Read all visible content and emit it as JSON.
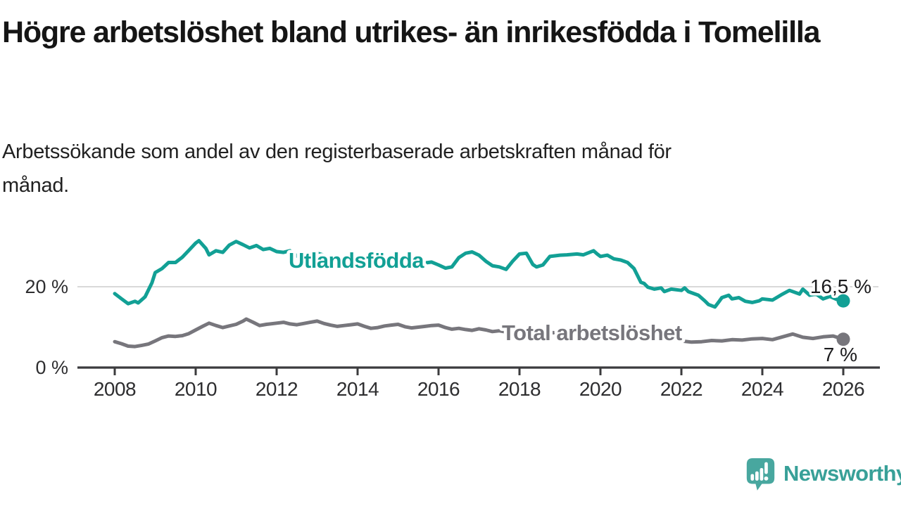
{
  "title": "Högre arbetslöshet bland utrikes- än inrikesfödda i Tomelilla",
  "subtitle": "Arbetssökande som andel av den registerbaserade arbetskraften månad för månad.",
  "branding": {
    "logo_text": "Newsworthy",
    "logo_icon": "newsworthy-speech-bubble-bar-chart-icon",
    "logo_color": "#48a79f",
    "logo_text_color": "#38a098"
  },
  "chart_data": {
    "type": "line",
    "title": "Högre arbetslöshet bland utrikes- än inrikesfödda i Tomelilla",
    "subtitle": "Arbetssökande som andel av den registerbaserade arbetskraften månad för månad.",
    "grid": "horizontal-at-20-only",
    "legend_position": "inline-labels-on-lines",
    "x_axis": {
      "range": [
        2007.1,
        2027.0
      ],
      "ticks": [
        2008,
        2010,
        2012,
        2014,
        2016,
        2018,
        2020,
        2022,
        2024,
        2026
      ]
    },
    "y_axis": {
      "unit": "%",
      "range": [
        0,
        33.5
      ],
      "ticks": [
        {
          "value": 20,
          "label": "20 %",
          "gridline": true
        },
        {
          "value": 0,
          "label": "0 %",
          "gridline": false
        }
      ]
    },
    "series": [
      {
        "name": "Utlandsfödda",
        "color": "#12a095",
        "end_label": "16,5 %",
        "end_value": 16.5,
        "points": [
          [
            2008.0,
            18.3
          ],
          [
            2008.17,
            17.0
          ],
          [
            2008.33,
            15.8
          ],
          [
            2008.5,
            16.4
          ],
          [
            2008.58,
            16.0
          ],
          [
            2008.75,
            17.5
          ],
          [
            2008.92,
            21.0
          ],
          [
            2009.0,
            23.5
          ],
          [
            2009.17,
            24.5
          ],
          [
            2009.33,
            26.0
          ],
          [
            2009.5,
            26.0
          ],
          [
            2009.67,
            27.3
          ],
          [
            2009.83,
            29.0
          ],
          [
            2010.0,
            30.8
          ],
          [
            2010.08,
            31.4
          ],
          [
            2010.25,
            29.5
          ],
          [
            2010.33,
            27.9
          ],
          [
            2010.5,
            28.9
          ],
          [
            2010.67,
            28.5
          ],
          [
            2010.83,
            30.3
          ],
          [
            2011.0,
            31.2
          ],
          [
            2011.17,
            30.4
          ],
          [
            2011.33,
            29.6
          ],
          [
            2011.5,
            30.2
          ],
          [
            2011.67,
            29.2
          ],
          [
            2011.83,
            29.5
          ],
          [
            2012.0,
            28.7
          ],
          [
            2012.17,
            28.5
          ],
          [
            2012.33,
            28.9
          ],
          [
            2012.5,
            27.6
          ],
          [
            2012.67,
            28.2
          ],
          [
            2012.83,
            27.5
          ],
          [
            2013.0,
            28.3
          ],
          [
            2013.17,
            27.8
          ],
          [
            2013.33,
            27.2
          ],
          [
            2013.5,
            26.8
          ],
          [
            2013.67,
            27.3
          ],
          [
            2013.83,
            26.6
          ],
          [
            2014.0,
            27.0
          ],
          [
            2014.17,
            26.4
          ],
          [
            2014.33,
            26.7
          ],
          [
            2014.5,
            26.1
          ],
          [
            2014.67,
            26.5
          ],
          [
            2014.83,
            25.9
          ],
          [
            2015.0,
            26.2
          ],
          [
            2015.17,
            25.7
          ],
          [
            2015.33,
            26.0
          ],
          [
            2015.5,
            25.5
          ],
          [
            2015.67,
            25.9
          ],
          [
            2015.83,
            26.1
          ],
          [
            2016.0,
            25.4
          ],
          [
            2016.17,
            24.6
          ],
          [
            2016.33,
            24.9
          ],
          [
            2016.5,
            27.2
          ],
          [
            2016.67,
            28.3
          ],
          [
            2016.83,
            28.6
          ],
          [
            2017.0,
            27.8
          ],
          [
            2017.17,
            26.3
          ],
          [
            2017.33,
            25.2
          ],
          [
            2017.5,
            24.9
          ],
          [
            2017.67,
            24.3
          ],
          [
            2017.83,
            26.3
          ],
          [
            2018.0,
            28.1
          ],
          [
            2018.17,
            28.3
          ],
          [
            2018.33,
            25.5
          ],
          [
            2018.42,
            24.9
          ],
          [
            2018.58,
            25.4
          ],
          [
            2018.75,
            27.5
          ],
          [
            2019.0,
            27.8
          ],
          [
            2019.17,
            27.9
          ],
          [
            2019.42,
            28.1
          ],
          [
            2019.58,
            27.9
          ],
          [
            2019.83,
            28.9
          ],
          [
            2019.92,
            28.1
          ],
          [
            2020.0,
            27.5
          ],
          [
            2020.17,
            27.8
          ],
          [
            2020.33,
            26.9
          ],
          [
            2020.5,
            26.6
          ],
          [
            2020.67,
            26.0
          ],
          [
            2020.83,
            24.5
          ],
          [
            2021.0,
            21.1
          ],
          [
            2021.08,
            20.8
          ],
          [
            2021.17,
            19.9
          ],
          [
            2021.33,
            19.4
          ],
          [
            2021.5,
            19.7
          ],
          [
            2021.58,
            18.8
          ],
          [
            2021.75,
            19.4
          ],
          [
            2022.0,
            19.1
          ],
          [
            2022.08,
            19.7
          ],
          [
            2022.17,
            18.8
          ],
          [
            2022.42,
            17.9
          ],
          [
            2022.58,
            16.5
          ],
          [
            2022.67,
            15.6
          ],
          [
            2022.83,
            15.0
          ],
          [
            2022.92,
            16.2
          ],
          [
            2023.0,
            17.3
          ],
          [
            2023.17,
            17.9
          ],
          [
            2023.25,
            17.0
          ],
          [
            2023.42,
            17.3
          ],
          [
            2023.58,
            16.4
          ],
          [
            2023.75,
            16.1
          ],
          [
            2023.92,
            16.5
          ],
          [
            2024.0,
            17.0
          ],
          [
            2024.25,
            16.7
          ],
          [
            2024.5,
            18.2
          ],
          [
            2024.67,
            19.1
          ],
          [
            2024.92,
            18.2
          ],
          [
            2025.0,
            19.4
          ],
          [
            2025.17,
            17.9
          ],
          [
            2025.33,
            18.2
          ],
          [
            2025.5,
            17.0
          ],
          [
            2025.67,
            17.6
          ],
          [
            2025.83,
            16.9
          ],
          [
            2026.0,
            16.5
          ]
        ]
      },
      {
        "name": "Total arbetslöshet",
        "color": "#77767c",
        "end_label": "7 %",
        "end_value": 7,
        "points": [
          [
            2008.0,
            6.4
          ],
          [
            2008.17,
            5.9
          ],
          [
            2008.33,
            5.3
          ],
          [
            2008.5,
            5.2
          ],
          [
            2008.67,
            5.5
          ],
          [
            2008.83,
            5.8
          ],
          [
            2009.0,
            6.6
          ],
          [
            2009.17,
            7.4
          ],
          [
            2009.33,
            7.8
          ],
          [
            2009.5,
            7.7
          ],
          [
            2009.67,
            7.9
          ],
          [
            2009.83,
            8.4
          ],
          [
            2010.0,
            9.3
          ],
          [
            2010.17,
            10.2
          ],
          [
            2010.33,
            11.0
          ],
          [
            2010.5,
            10.4
          ],
          [
            2010.67,
            9.9
          ],
          [
            2010.83,
            10.3
          ],
          [
            2011.0,
            10.7
          ],
          [
            2011.17,
            11.5
          ],
          [
            2011.25,
            12.0
          ],
          [
            2011.42,
            11.2
          ],
          [
            2011.58,
            10.4
          ],
          [
            2011.75,
            10.7
          ],
          [
            2012.0,
            11.0
          ],
          [
            2012.17,
            11.2
          ],
          [
            2012.33,
            10.8
          ],
          [
            2012.5,
            10.6
          ],
          [
            2012.67,
            10.9
          ],
          [
            2012.83,
            11.2
          ],
          [
            2013.0,
            11.5
          ],
          [
            2013.17,
            10.9
          ],
          [
            2013.33,
            10.5
          ],
          [
            2013.5,
            10.2
          ],
          [
            2013.67,
            10.4
          ],
          [
            2013.83,
            10.6
          ],
          [
            2014.0,
            10.8
          ],
          [
            2014.17,
            10.2
          ],
          [
            2014.33,
            9.7
          ],
          [
            2014.5,
            9.9
          ],
          [
            2014.67,
            10.3
          ],
          [
            2014.83,
            10.5
          ],
          [
            2015.0,
            10.7
          ],
          [
            2015.17,
            10.1
          ],
          [
            2015.33,
            9.8
          ],
          [
            2015.5,
            10.0
          ],
          [
            2015.67,
            10.2
          ],
          [
            2015.83,
            10.4
          ],
          [
            2016.0,
            10.5
          ],
          [
            2016.17,
            9.9
          ],
          [
            2016.33,
            9.5
          ],
          [
            2016.5,
            9.7
          ],
          [
            2016.67,
            9.4
          ],
          [
            2016.83,
            9.2
          ],
          [
            2017.0,
            9.6
          ],
          [
            2017.17,
            9.3
          ],
          [
            2017.33,
            8.9
          ],
          [
            2017.5,
            9.1
          ],
          [
            2017.67,
            8.8
          ],
          [
            2017.83,
            9.0
          ],
          [
            2018.0,
            8.9
          ],
          [
            2018.25,
            9.2
          ],
          [
            2018.5,
            9.0
          ],
          [
            2018.75,
            8.7
          ],
          [
            2019.0,
            8.5
          ],
          [
            2019.25,
            8.2
          ],
          [
            2019.5,
            8.0
          ],
          [
            2019.75,
            8.1
          ],
          [
            2020.0,
            8.3
          ],
          [
            2020.25,
            8.6
          ],
          [
            2020.5,
            8.8
          ],
          [
            2020.75,
            8.5
          ],
          [
            2021.0,
            8.2
          ],
          [
            2021.25,
            7.8
          ],
          [
            2021.5,
            7.4
          ],
          [
            2021.75,
            7.0
          ],
          [
            2022.0,
            6.6
          ],
          [
            2022.25,
            6.3
          ],
          [
            2022.5,
            6.4
          ],
          [
            2022.75,
            6.7
          ],
          [
            2023.0,
            6.6
          ],
          [
            2023.25,
            6.9
          ],
          [
            2023.5,
            6.8
          ],
          [
            2023.75,
            7.1
          ],
          [
            2024.0,
            7.2
          ],
          [
            2024.25,
            6.9
          ],
          [
            2024.5,
            7.6
          ],
          [
            2024.75,
            8.3
          ],
          [
            2025.0,
            7.5
          ],
          [
            2025.25,
            7.2
          ],
          [
            2025.5,
            7.6
          ],
          [
            2025.75,
            7.8
          ],
          [
            2026.0,
            7.0
          ]
        ]
      }
    ]
  }
}
